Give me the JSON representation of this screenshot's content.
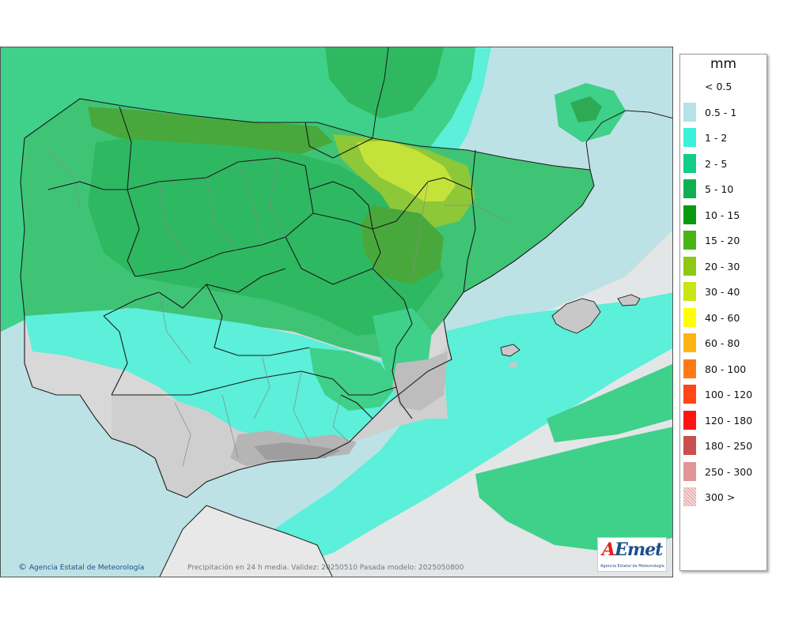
{
  "map": {
    "credit": "Agencia Estatal de Meteorología",
    "caption": "Precipitación en 24 h media. Validez: 20250510 Pasada modelo: 2025050800",
    "logo": {
      "brand": "AEmet",
      "subtitle": "Agencia Estatal de Meteorología"
    }
  },
  "legend": {
    "unit": "mm",
    "items": [
      {
        "label": "< 0.5",
        "color": "#ffffff"
      },
      {
        "label": "0.5 - 1",
        "color": "#b4e2e6"
      },
      {
        "label": "1 - 2",
        "color": "#3cf0dc"
      },
      {
        "label": "2 - 5",
        "color": "#12cc88"
      },
      {
        "label": "5 - 10",
        "color": "#10b050"
      },
      {
        "label": "10 - 15",
        "color": "#0a9a10"
      },
      {
        "label": "15 - 20",
        "color": "#4ab414"
      },
      {
        "label": "20 - 30",
        "color": "#8cc814"
      },
      {
        "label": "30 - 40",
        "color": "#c8e614"
      },
      {
        "label": "40 - 60",
        "color": "#ffff00"
      },
      {
        "label": "60 - 80",
        "color": "#ffb414"
      },
      {
        "label": "80 - 100",
        "color": "#ff7a14"
      },
      {
        "label": "100 - 120",
        "color": "#ff4614"
      },
      {
        "label": "120 - 180",
        "color": "#ff1414"
      },
      {
        "label": "180 - 250",
        "color": "#c85050"
      },
      {
        "label": "250 - 300",
        "color": "#e09696"
      },
      {
        "label": "300 >",
        "color": "#f0c8c8"
      }
    ]
  }
}
